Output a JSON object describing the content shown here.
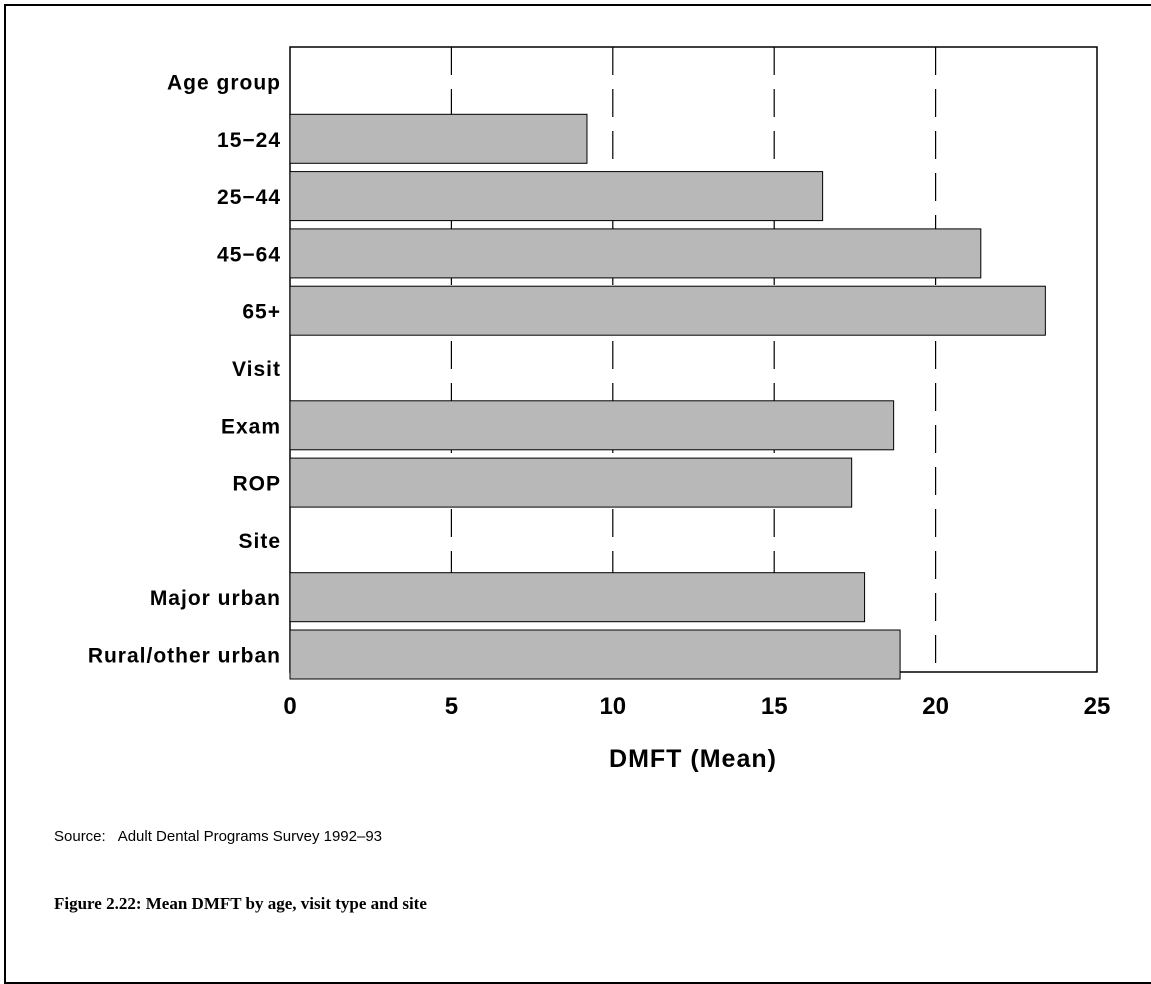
{
  "chart_data": {
    "type": "bar",
    "orientation": "horizontal",
    "rows": [
      {
        "label": "Age group",
        "value": null
      },
      {
        "label": "15−24",
        "value": 9.2
      },
      {
        "label": "25−44",
        "value": 16.5
      },
      {
        "label": "45−64",
        "value": 21.4
      },
      {
        "label": "65+",
        "value": 23.4
      },
      {
        "label": "Visit",
        "value": null
      },
      {
        "label": "Exam",
        "value": 18.7
      },
      {
        "label": "ROP",
        "value": 17.4
      },
      {
        "label": "Site",
        "value": null
      },
      {
        "label": "Major urban",
        "value": 17.8
      },
      {
        "label": "Rural/other urban",
        "value": 18.9
      }
    ],
    "xlabel": "DMFT (Mean)",
    "xlim": [
      0,
      25
    ],
    "xticks": [
      0,
      5,
      10,
      15,
      20,
      25
    ],
    "grid": "dashed vertical",
    "bar_color": "#b8b8b8"
  },
  "source": {
    "label": "Source:",
    "text": "Adult Dental Programs Survey 1992–93"
  },
  "caption": "Figure 2.22: Mean DMFT by age, visit type and site"
}
